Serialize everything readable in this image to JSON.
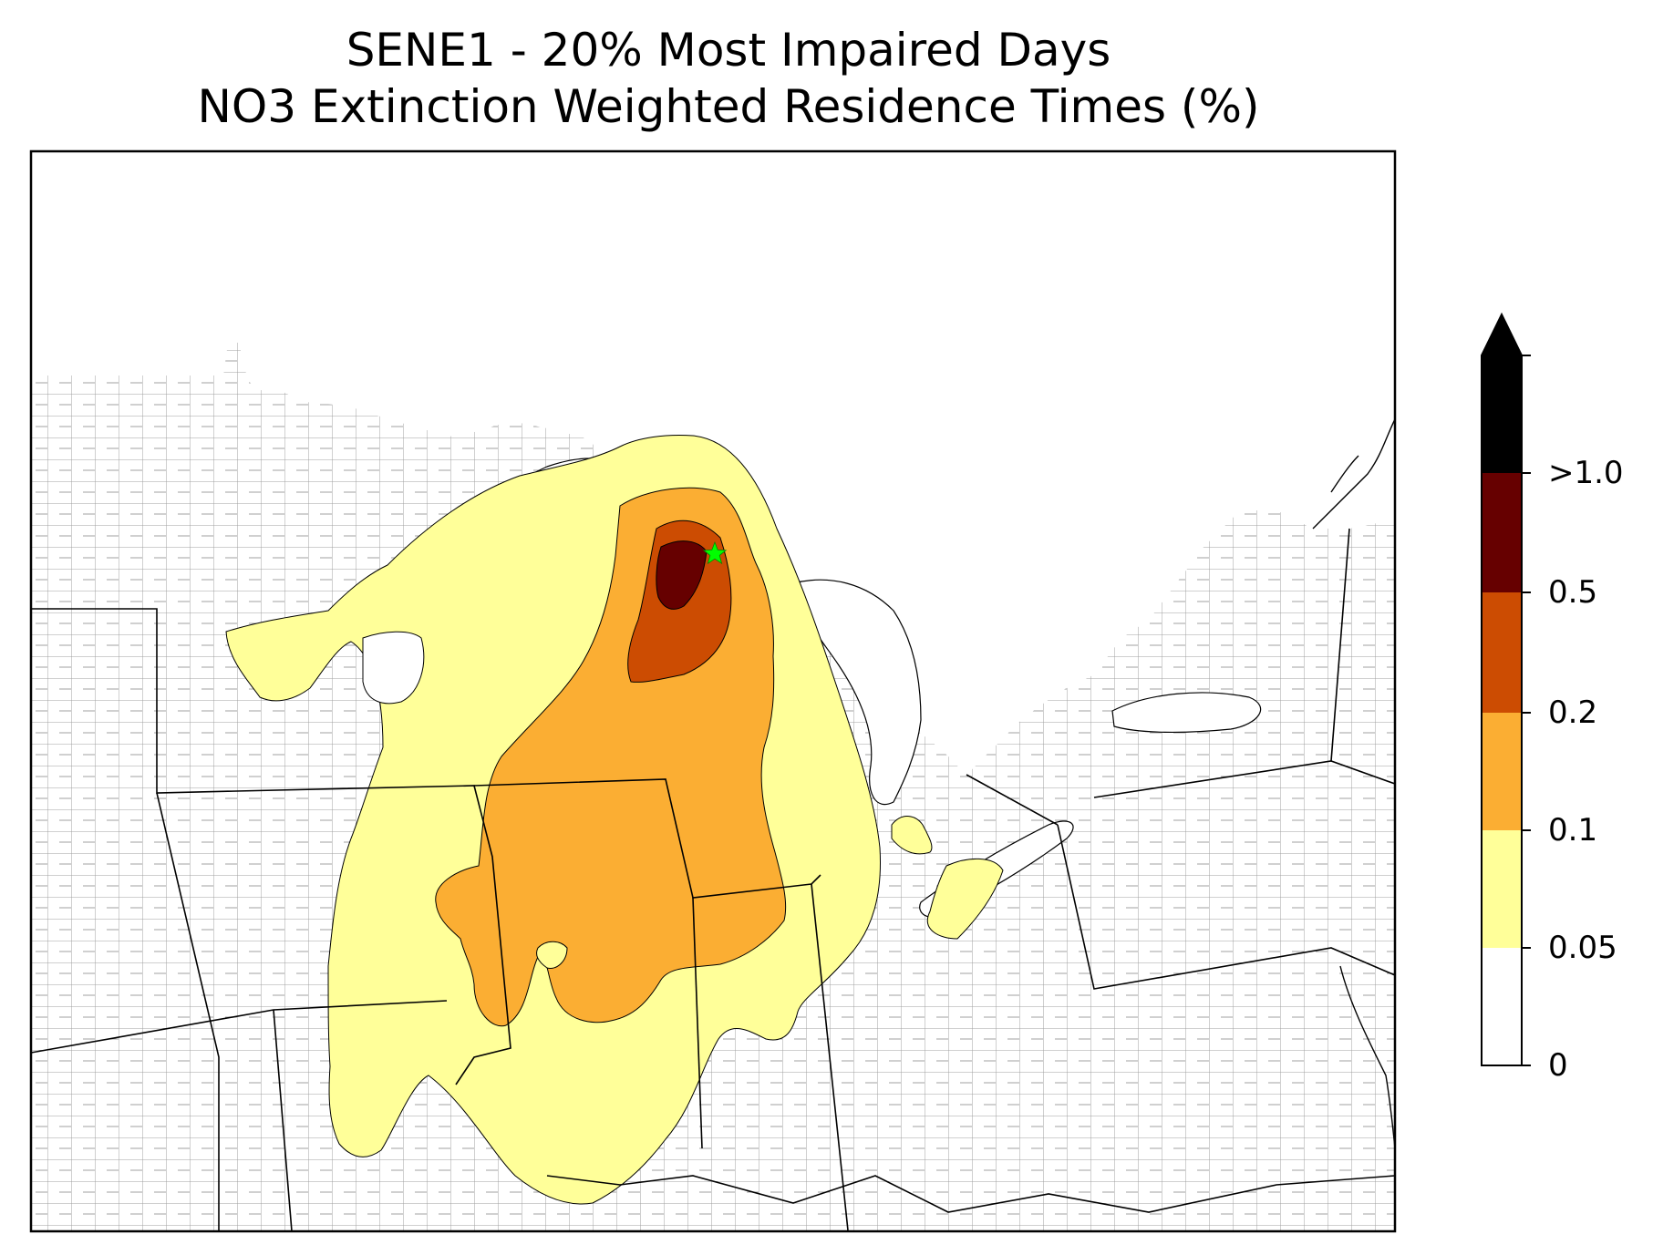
{
  "title": {
    "line1": "SENE1 - 20% Most Impaired Days",
    "line2": "NO3 Extinction Weighted Residence Times (%)"
  },
  "colorbar": {
    "labels": [
      "0",
      "0.05",
      "0.1",
      "0.2",
      "0.5",
      ">1.0"
    ],
    "bins": [
      {
        "range": "0 - 0.05",
        "color": "#ffffff"
      },
      {
        "range": "0.05 - 0.1",
        "color": "#ffff99"
      },
      {
        "range": "0.1 - 0.2",
        "color": "#fbae33"
      },
      {
        "range": "0.2 - 0.5",
        "color": "#cc4c02"
      },
      {
        "range": "0.5 - 1.0",
        "color": "#660000"
      },
      {
        "range": ">1.0",
        "color": "#000000"
      }
    ],
    "extend": "max"
  },
  "map": {
    "region": "Upper Midwest / Great Lakes / Northeast United States",
    "receptor_marker": "green-star",
    "receptor_color": "#00ff00",
    "state_line_color": "#000000",
    "county_line_color": "#a0a0a0",
    "outside_color": "#ffffff"
  }
}
